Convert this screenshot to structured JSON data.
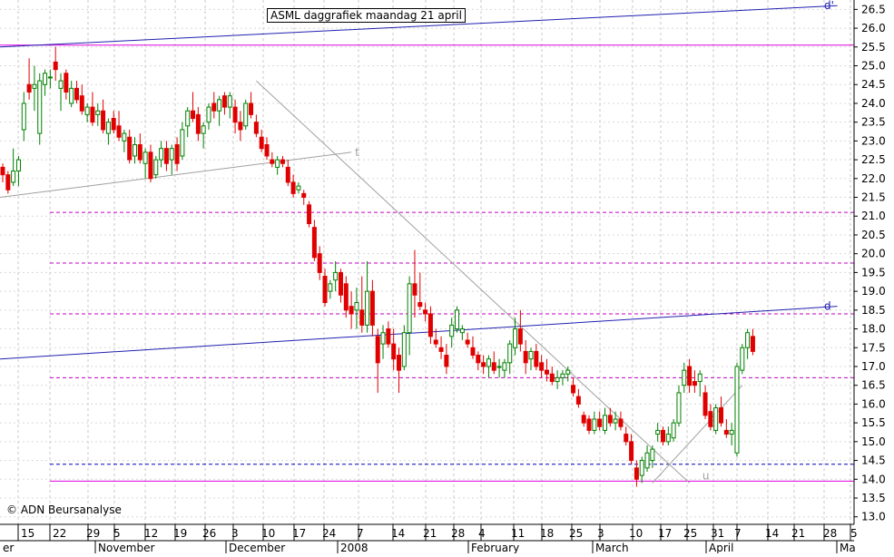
{
  "chart_data": {
    "type": "candlestick",
    "title": "ASML daggrafiek maandag 21 april",
    "credit": "© ADN Beursanalyse",
    "y_axis": {
      "min": 12.8,
      "max": 26.75,
      "position": "right",
      "ticks": [
        "13.0",
        "13.5",
        "14.0",
        "14.5",
        "15.0",
        "15.5",
        "16.0",
        "16.5",
        "17.0",
        "17.5",
        "18.0",
        "18.5",
        "19.0",
        "19.5",
        "20.0",
        "20.5",
        "21.0",
        "21.5",
        "22.0",
        "22.5",
        "23.0",
        "23.5",
        "24.0",
        "24.5",
        "25.0",
        "25.5",
        "26.0",
        "26.5"
      ]
    },
    "x_axis": {
      "day_labels": [
        "15",
        "22",
        "29",
        "5",
        "12",
        "19",
        "26",
        "3",
        "10",
        "17",
        "24",
        "7",
        "14",
        "21",
        "28",
        "4",
        "11",
        "18",
        "25",
        "3",
        "10",
        "17",
        "25",
        "31",
        "7",
        "14",
        "21",
        "28",
        "5"
      ],
      "month_labels": [
        "er",
        "November",
        "December",
        "2008",
        "February",
        "March",
        "April",
        "Ma"
      ]
    },
    "grid": true,
    "horizontal_levels": [
      {
        "value": 25.55,
        "color": "#e000e0",
        "style": "solid"
      },
      {
        "value": 21.1,
        "color": "#c000c0",
        "style": "dashed"
      },
      {
        "value": 19.75,
        "color": "#c000c0",
        "style": "dashed"
      },
      {
        "value": 18.4,
        "color": "#c000c0",
        "style": "dashed"
      },
      {
        "value": 16.7,
        "color": "#c000c0",
        "style": "dashed"
      },
      {
        "value": 14.4,
        "color": "#0000c0",
        "style": "dashed"
      },
      {
        "value": 13.95,
        "color": "#e000e0",
        "style": "solid"
      }
    ],
    "trendlines": [
      {
        "label": "d'",
        "color": "#2020b0",
        "from": [
          -0.5,
          25.5
        ],
        "to": [
          158,
          26.6
        ]
      },
      {
        "label": "d",
        "color": "#2020b0",
        "from": [
          -0.5,
          17.2
        ],
        "to": [
          158,
          18.6
        ]
      },
      {
        "label": "t",
        "color": "#a0a0a0",
        "from": [
          -0.5,
          21.5
        ],
        "to": [
          66,
          22.7
        ]
      },
      {
        "label": "",
        "color": "#a0a0a0",
        "from": [
          48,
          24.6
        ],
        "to": [
          130,
          13.9
        ]
      },
      {
        "label": "u",
        "color": "#a0a0a0",
        "from": [
          123,
          13.9
        ],
        "to": [
          140,
          16.5
        ]
      }
    ],
    "candles": [
      [
        22.3,
        22.4,
        21.9,
        22.1
      ],
      [
        22.1,
        22.2,
        21.6,
        21.7
      ],
      [
        21.9,
        22.8,
        21.8,
        22.2
      ],
      [
        22.2,
        22.6,
        21.8,
        22.5
      ],
      [
        23.3,
        24.3,
        23.0,
        24.0
      ],
      [
        24.5,
        25.2,
        24.1,
        24.3
      ],
      [
        24.4,
        25.0,
        23.8,
        24.5
      ],
      [
        23.2,
        24.8,
        22.9,
        24.6
      ],
      [
        24.5,
        24.9,
        24.2,
        24.8
      ],
      [
        24.7,
        24.9,
        24.4,
        24.7
      ],
      [
        25.1,
        25.5,
        24.6,
        24.9
      ],
      [
        24.4,
        24.8,
        23.8,
        24.6
      ],
      [
        24.8,
        24.9,
        24.1,
        24.3
      ],
      [
        24.0,
        24.6,
        23.9,
        24.4
      ],
      [
        24.4,
        24.6,
        24.0,
        24.1
      ],
      [
        24.2,
        24.5,
        23.7,
        23.8
      ],
      [
        23.7,
        24.0,
        23.5,
        23.9
      ],
      [
        23.9,
        24.3,
        23.4,
        23.5
      ],
      [
        23.7,
        24.0,
        23.4,
        23.8
      ],
      [
        23.8,
        24.1,
        23.2,
        23.3
      ],
      [
        23.2,
        23.6,
        22.9,
        23.5
      ],
      [
        23.6,
        23.8,
        23.2,
        23.3
      ],
      [
        23.4,
        23.8,
        23.0,
        23.1
      ],
      [
        23.0,
        23.3,
        22.7,
        23.2
      ],
      [
        23.1,
        23.3,
        22.4,
        22.5
      ],
      [
        22.6,
        23.1,
        22.4,
        22.9
      ],
      [
        22.9,
        23.2,
        22.4,
        22.5
      ],
      [
        22.4,
        22.8,
        22.0,
        22.7
      ],
      [
        22.7,
        22.9,
        21.9,
        22.0
      ],
      [
        22.1,
        22.6,
        22.0,
        22.5
      ],
      [
        22.5,
        23.0,
        22.3,
        22.8
      ],
      [
        22.8,
        23.0,
        22.2,
        22.4
      ],
      [
        22.5,
        22.9,
        22.1,
        22.8
      ],
      [
        22.9,
        23.1,
        22.2,
        22.4
      ],
      [
        22.6,
        23.5,
        22.5,
        23.3
      ],
      [
        23.4,
        23.9,
        23.1,
        23.8
      ],
      [
        23.8,
        24.3,
        23.5,
        23.6
      ],
      [
        23.7,
        23.9,
        23.0,
        23.2
      ],
      [
        23.2,
        23.5,
        22.8,
        23.4
      ],
      [
        23.5,
        24.0,
        23.3,
        23.9
      ],
      [
        24.0,
        24.3,
        23.6,
        23.8
      ],
      [
        23.8,
        24.2,
        23.4,
        24.1
      ],
      [
        24.2,
        24.3,
        23.7,
        23.9
      ],
      [
        23.9,
        24.3,
        23.6,
        24.2
      ],
      [
        23.9,
        24.1,
        23.2,
        23.5
      ],
      [
        23.5,
        23.8,
        23.0,
        23.3
      ],
      [
        23.4,
        24.1,
        23.3,
        24.0
      ],
      [
        24.0,
        24.3,
        23.6,
        23.7
      ],
      [
        23.5,
        23.7,
        23.1,
        23.2
      ],
      [
        23.1,
        23.3,
        22.7,
        22.8
      ],
      [
        22.9,
        23.1,
        22.5,
        22.6
      ],
      [
        22.5,
        22.7,
        22.3,
        22.4
      ],
      [
        22.3,
        22.6,
        22.1,
        22.5
      ],
      [
        22.5,
        22.6,
        22.3,
        22.4
      ],
      [
        22.3,
        22.5,
        21.8,
        21.9
      ],
      [
        21.9,
        22.1,
        21.5,
        21.6
      ],
      [
        21.7,
        21.9,
        21.6,
        21.8
      ],
      [
        21.6,
        21.7,
        21.3,
        21.5
      ],
      [
        21.3,
        21.4,
        20.7,
        20.8
      ],
      [
        20.7,
        20.9,
        19.8,
        19.9
      ],
      [
        20.0,
        20.2,
        19.3,
        19.5
      ],
      [
        19.4,
        19.6,
        18.6,
        18.7
      ],
      [
        19.0,
        19.3,
        18.8,
        19.2
      ],
      [
        19.3,
        19.8,
        19.0,
        19.5
      ],
      [
        19.5,
        19.6,
        18.7,
        18.9
      ],
      [
        19.2,
        19.4,
        18.3,
        18.5
      ],
      [
        18.6,
        19.0,
        18.0,
        18.4
      ],
      [
        18.5,
        19.1,
        18.0,
        18.7
      ],
      [
        18.5,
        19.4,
        17.9,
        18.1
      ],
      [
        18.1,
        19.8,
        17.9,
        19.0
      ],
      [
        19.0,
        19.3,
        17.8,
        18.1
      ],
      [
        17.8,
        18.0,
        16.3,
        17.1
      ],
      [
        17.6,
        18.1,
        17.2,
        17.9
      ],
      [
        18.0,
        18.2,
        17.5,
        17.6
      ],
      [
        17.6,
        18.0,
        16.9,
        17.2
      ],
      [
        17.3,
        17.5,
        16.3,
        16.9
      ],
      [
        17.0,
        18.1,
        16.9,
        17.9
      ],
      [
        17.9,
        19.4,
        17.3,
        19.2
      ],
      [
        19.2,
        20.1,
        18.3,
        18.9
      ],
      [
        18.7,
        19.5,
        18.5,
        18.6
      ],
      [
        18.5,
        18.7,
        18.2,
        18.4
      ],
      [
        18.4,
        18.6,
        17.6,
        17.8
      ],
      [
        17.7,
        18.0,
        17.5,
        17.6
      ],
      [
        17.5,
        17.8,
        17.2,
        17.4
      ],
      [
        17.3,
        17.6,
        16.8,
        17.0
      ],
      [
        17.8,
        18.3,
        17.5,
        18.1
      ],
      [
        18.0,
        18.6,
        17.9,
        18.5
      ],
      [
        17.9,
        18.1,
        17.7,
        18.0
      ],
      [
        17.7,
        17.9,
        17.5,
        17.6
      ],
      [
        17.5,
        17.8,
        17.2,
        17.3
      ],
      [
        17.3,
        17.4,
        16.9,
        17.1
      ],
      [
        17.1,
        17.3,
        16.8,
        17.0
      ],
      [
        17.0,
        17.3,
        16.7,
        17.2
      ],
      [
        17.1,
        17.4,
        16.8,
        16.9
      ],
      [
        17.0,
        17.2,
        16.7,
        17.0
      ],
      [
        16.9,
        17.2,
        16.7,
        17.1
      ],
      [
        17.1,
        17.7,
        16.8,
        17.6
      ],
      [
        17.5,
        18.3,
        17.3,
        18.0
      ],
      [
        18.0,
        18.5,
        17.4,
        17.6
      ],
      [
        17.4,
        17.7,
        16.8,
        17.1
      ],
      [
        17.2,
        17.5,
        16.9,
        17.4
      ],
      [
        17.4,
        17.6,
        16.9,
        17.0
      ],
      [
        17.1,
        17.3,
        16.7,
        16.9
      ],
      [
        16.9,
        17.2,
        16.6,
        16.8
      ],
      [
        16.8,
        17.0,
        16.5,
        16.6
      ],
      [
        16.6,
        16.9,
        16.4,
        16.7
      ],
      [
        16.7,
        16.9,
        16.5,
        16.8
      ],
      [
        16.8,
        17.0,
        16.6,
        16.9
      ],
      [
        16.5,
        16.7,
        16.2,
        16.3
      ],
      [
        16.2,
        16.4,
        15.9,
        16.0
      ],
      [
        15.7,
        15.8,
        15.4,
        15.5
      ],
      [
        15.6,
        15.7,
        15.2,
        15.3
      ],
      [
        15.3,
        15.8,
        15.2,
        15.6
      ],
      [
        15.6,
        15.8,
        15.3,
        15.4
      ],
      [
        15.3,
        15.9,
        15.2,
        15.7
      ],
      [
        15.7,
        15.9,
        15.4,
        15.5
      ],
      [
        15.5,
        15.8,
        15.3,
        15.6
      ],
      [
        15.6,
        15.8,
        15.3,
        15.4
      ],
      [
        15.2,
        15.4,
        14.9,
        15.0
      ],
      [
        15.0,
        15.2,
        14.4,
        14.5
      ],
      [
        14.3,
        14.5,
        13.8,
        14.0
      ],
      [
        14.1,
        14.6,
        13.9,
        14.5
      ],
      [
        14.3,
        14.9,
        14.2,
        14.7
      ],
      [
        14.5,
        14.9,
        14.3,
        14.8
      ],
      [
        15.2,
        15.5,
        15.0,
        15.3
      ],
      [
        15.3,
        15.4,
        14.9,
        15.0
      ],
      [
        15.0,
        15.4,
        14.9,
        15.2
      ],
      [
        15.1,
        15.6,
        15.0,
        15.5
      ],
      [
        15.5,
        16.5,
        15.4,
        16.3
      ],
      [
        16.5,
        17.1,
        16.3,
        16.9
      ],
      [
        17.0,
        17.2,
        16.3,
        16.5
      ],
      [
        16.6,
        16.9,
        16.3,
        16.5
      ],
      [
        16.6,
        16.9,
        16.2,
        16.8
      ],
      [
        16.3,
        16.5,
        15.6,
        15.7
      ],
      [
        15.8,
        16.0,
        15.3,
        15.4
      ],
      [
        15.3,
        16.0,
        15.2,
        15.9
      ],
      [
        15.9,
        16.2,
        15.4,
        15.5
      ],
      [
        15.3,
        15.6,
        15.1,
        15.2
      ],
      [
        15.2,
        15.5,
        14.9,
        15.3
      ],
      [
        14.7,
        17.1,
        14.6,
        17.0
      ],
      [
        16.9,
        17.6,
        16.8,
        17.5
      ],
      [
        17.5,
        18.0,
        17.2,
        17.9
      ],
      [
        17.8,
        18.0,
        17.3,
        17.4
      ]
    ]
  }
}
